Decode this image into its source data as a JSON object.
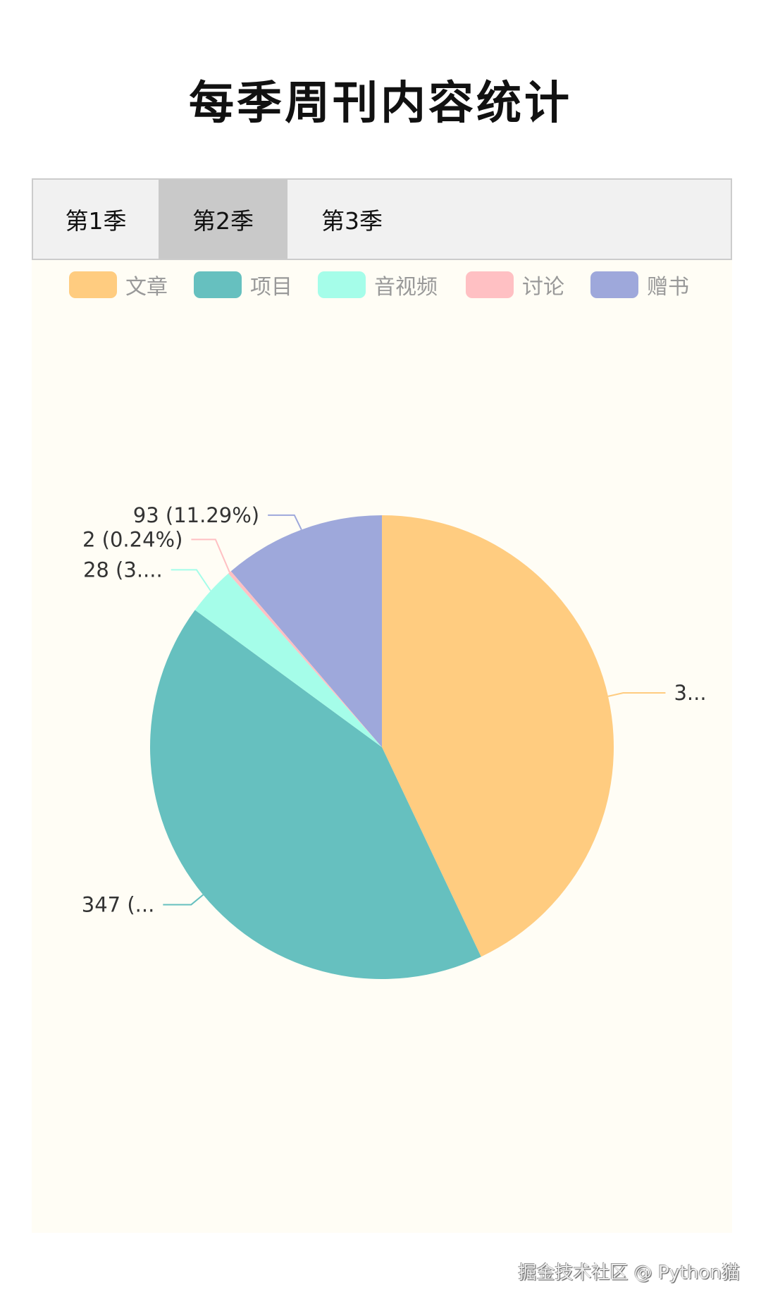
{
  "title": "每季周刊内容统计",
  "tabs": [
    {
      "label": "第1季",
      "active": false
    },
    {
      "label": "第2季",
      "active": true
    },
    {
      "label": "第3季",
      "active": false
    }
  ],
  "watermark": "掘金技术社区 @ Python猫",
  "chart_data": {
    "type": "pie",
    "legend_position": "top",
    "categories": [
      "文章",
      "项目",
      "音视频",
      "讨论",
      "赠书"
    ],
    "values": [
      354,
      347,
      28,
      2,
      93
    ],
    "colors": [
      "#ffcc80",
      "#66c0bf",
      "#a5fde9",
      "#ffc0c3",
      "#9ea8db"
    ],
    "labels": [
      "3...",
      "347 (...",
      "28 (3....",
      "2 (0.24%)",
      "93 (11.29%)"
    ]
  }
}
